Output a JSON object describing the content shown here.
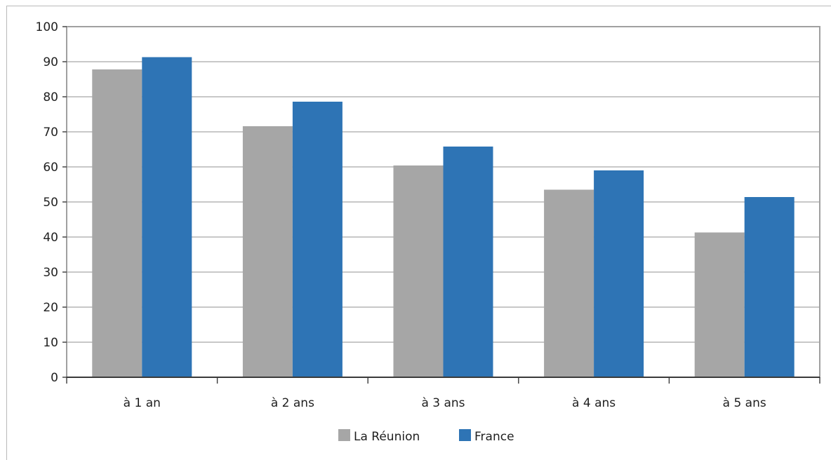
{
  "chart_data": {
    "type": "bar",
    "title": "",
    "xlabel": "",
    "ylabel": "",
    "categories": [
      "à 1 an",
      "à 2 ans",
      "à 3 ans",
      "à 4 ans",
      "à 5 ans"
    ],
    "series": [
      {
        "name": "La Réunion",
        "color": "#a6a6a6",
        "values": [
          87.8,
          71.6,
          60.4,
          53.5,
          41.3
        ]
      },
      {
        "name": "France",
        "color": "#2e74b5",
        "values": [
          91.3,
          78.6,
          65.8,
          59.0,
          51.4
        ]
      }
    ],
    "ylim": [
      0,
      100
    ],
    "yticks": [
      "0",
      "10",
      "20",
      "30",
      "40",
      "50",
      "60",
      "70",
      "80",
      "90",
      "100"
    ],
    "grid": true,
    "legend": "bottom-center"
  }
}
